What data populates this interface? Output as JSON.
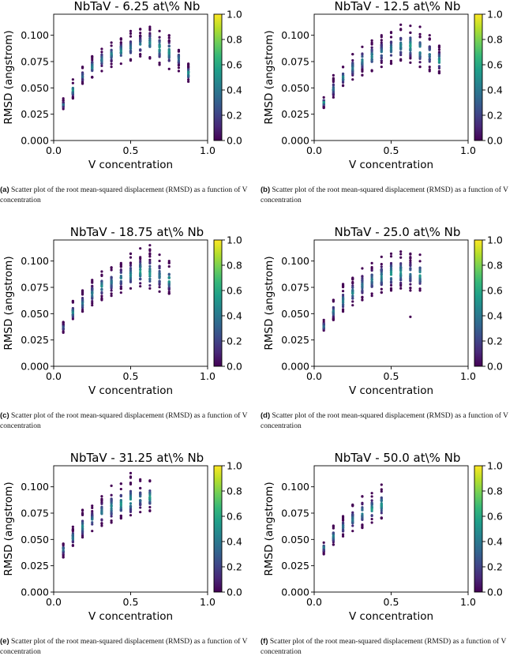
{
  "colorbar": {
    "ticks": [
      "0.0",
      "0.2",
      "0.4",
      "0.6",
      "0.8",
      "1.0"
    ]
  },
  "chart_data": [
    {
      "type": "scatter",
      "title": "NbTaV - 6.25 at\\% Nb",
      "xlabel": "V concentration",
      "ylabel": "RMSD (angstrom)",
      "xlim": [
        0,
        1
      ],
      "ylim": [
        0,
        0.12
      ],
      "x_ticks": [
        "0.0",
        "0.5",
        "1.0"
      ],
      "y_ticks": [
        "0.000",
        "0.025",
        "0.050",
        "0.075",
        "0.100"
      ],
      "colorbar_range": [
        0,
        1
      ],
      "series": [
        {
          "x": 0.0625,
          "y_min": 0.03,
          "y_max": 0.04,
          "center": 0.034
        },
        {
          "x": 0.125,
          "y_min": 0.04,
          "y_max": 0.058,
          "center": 0.048
        },
        {
          "x": 0.1875,
          "y_min": 0.054,
          "y_max": 0.07,
          "center": 0.061
        },
        {
          "x": 0.25,
          "y_min": 0.06,
          "y_max": 0.08,
          "center": 0.07
        },
        {
          "x": 0.3125,
          "y_min": 0.066,
          "y_max": 0.087,
          "center": 0.077
        },
        {
          "x": 0.375,
          "y_min": 0.07,
          "y_max": 0.093,
          "center": 0.082
        },
        {
          "x": 0.4375,
          "y_min": 0.073,
          "y_max": 0.097,
          "center": 0.085
        },
        {
          "x": 0.5,
          "y_min": 0.076,
          "y_max": 0.104,
          "center": 0.088
        },
        {
          "x": 0.5625,
          "y_min": 0.08,
          "y_max": 0.106,
          "center": 0.091
        },
        {
          "x": 0.625,
          "y_min": 0.078,
          "y_max": 0.108,
          "center": 0.093
        },
        {
          "x": 0.6875,
          "y_min": 0.072,
          "y_max": 0.104,
          "center": 0.088
        },
        {
          "x": 0.75,
          "y_min": 0.068,
          "y_max": 0.1,
          "center": 0.084
        },
        {
          "x": 0.8125,
          "y_min": 0.066,
          "y_max": 0.086,
          "center": 0.078
        },
        {
          "x": 0.875,
          "y_min": 0.056,
          "y_max": 0.073,
          "center": 0.064
        }
      ]
    },
    {
      "type": "scatter",
      "title": "NbTaV - 12.5 at\\% Nb",
      "xlabel": "V concentration",
      "ylabel": "RMSD (angstrom)",
      "xlim": [
        0,
        1
      ],
      "ylim": [
        0,
        0.12
      ],
      "x_ticks": [
        "0.0",
        "0.5",
        "1.0"
      ],
      "y_ticks": [
        "0.000",
        "0.025",
        "0.050",
        "0.075",
        "0.100"
      ],
      "colorbar_range": [
        0,
        1
      ],
      "series": [
        {
          "x": 0.0625,
          "y_min": 0.031,
          "y_max": 0.041,
          "center": 0.036
        },
        {
          "x": 0.125,
          "y_min": 0.041,
          "y_max": 0.062,
          "center": 0.049
        },
        {
          "x": 0.1875,
          "y_min": 0.052,
          "y_max": 0.07,
          "center": 0.06
        },
        {
          "x": 0.25,
          "y_min": 0.058,
          "y_max": 0.082,
          "center": 0.069
        },
        {
          "x": 0.3125,
          "y_min": 0.062,
          "y_max": 0.089,
          "center": 0.076
        },
        {
          "x": 0.375,
          "y_min": 0.066,
          "y_max": 0.095,
          "center": 0.08
        },
        {
          "x": 0.4375,
          "y_min": 0.07,
          "y_max": 0.1,
          "center": 0.084
        },
        {
          "x": 0.5,
          "y_min": 0.073,
          "y_max": 0.103,
          "center": 0.087
        },
        {
          "x": 0.5625,
          "y_min": 0.076,
          "y_max": 0.11,
          "center": 0.09
        },
        {
          "x": 0.625,
          "y_min": 0.074,
          "y_max": 0.109,
          "center": 0.09
        },
        {
          "x": 0.6875,
          "y_min": 0.07,
          "y_max": 0.108,
          "center": 0.086
        },
        {
          "x": 0.75,
          "y_min": 0.066,
          "y_max": 0.1,
          "center": 0.082
        },
        {
          "x": 0.8125,
          "y_min": 0.064,
          "y_max": 0.09,
          "center": 0.076
        }
      ]
    },
    {
      "type": "scatter",
      "title": "NbTaV - 18.75 at\\% Nb",
      "xlabel": "V concentration",
      "ylabel": "RMSD (angstrom)",
      "xlim": [
        0,
        1
      ],
      "ylim": [
        0,
        0.12
      ],
      "x_ticks": [
        "0.0",
        "0.5",
        "1.0"
      ],
      "y_ticks": [
        "0.000",
        "0.025",
        "0.050",
        "0.075",
        "0.100"
      ],
      "colorbar_range": [
        0,
        1
      ],
      "series": [
        {
          "x": 0.0625,
          "y_min": 0.032,
          "y_max": 0.042,
          "center": 0.037
        },
        {
          "x": 0.125,
          "y_min": 0.045,
          "y_max": 0.062,
          "center": 0.051
        },
        {
          "x": 0.1875,
          "y_min": 0.052,
          "y_max": 0.072,
          "center": 0.06
        },
        {
          "x": 0.25,
          "y_min": 0.058,
          "y_max": 0.082,
          "center": 0.069
        },
        {
          "x": 0.3125,
          "y_min": 0.063,
          "y_max": 0.09,
          "center": 0.076
        },
        {
          "x": 0.375,
          "y_min": 0.067,
          "y_max": 0.094,
          "center": 0.08
        },
        {
          "x": 0.4375,
          "y_min": 0.07,
          "y_max": 0.098,
          "center": 0.084
        },
        {
          "x": 0.5,
          "y_min": 0.074,
          "y_max": 0.107,
          "center": 0.087
        },
        {
          "x": 0.5625,
          "y_min": 0.076,
          "y_max": 0.112,
          "center": 0.09
        },
        {
          "x": 0.625,
          "y_min": 0.074,
          "y_max": 0.115,
          "center": 0.088
        },
        {
          "x": 0.6875,
          "y_min": 0.071,
          "y_max": 0.106,
          "center": 0.086
        },
        {
          "x": 0.75,
          "y_min": 0.069,
          "y_max": 0.1,
          "center": 0.082
        }
      ]
    },
    {
      "type": "scatter",
      "title": "NbTaV - 25.0 at\\% Nb",
      "xlabel": "V concentration",
      "ylabel": "RMSD (angstrom)",
      "xlim": [
        0,
        1
      ],
      "ylim": [
        0,
        0.12
      ],
      "x_ticks": [
        "0.0",
        "0.5",
        "1.0"
      ],
      "y_ticks": [
        "0.000",
        "0.025",
        "0.050",
        "0.075",
        "0.100"
      ],
      "colorbar_range": [
        0,
        1
      ],
      "series": [
        {
          "x": 0.0625,
          "y_min": 0.034,
          "y_max": 0.044,
          "center": 0.038
        },
        {
          "x": 0.125,
          "y_min": 0.044,
          "y_max": 0.063,
          "center": 0.052
        },
        {
          "x": 0.1875,
          "y_min": 0.052,
          "y_max": 0.078,
          "center": 0.062
        },
        {
          "x": 0.25,
          "y_min": 0.058,
          "y_max": 0.084,
          "center": 0.07
        },
        {
          "x": 0.3125,
          "y_min": 0.063,
          "y_max": 0.093,
          "center": 0.077
        },
        {
          "x": 0.375,
          "y_min": 0.067,
          "y_max": 0.098,
          "center": 0.082
        },
        {
          "x": 0.4375,
          "y_min": 0.07,
          "y_max": 0.104,
          "center": 0.085
        },
        {
          "x": 0.5,
          "y_min": 0.072,
          "y_max": 0.107,
          "center": 0.088
        },
        {
          "x": 0.5625,
          "y_min": 0.074,
          "y_max": 0.109,
          "center": 0.089
        },
        {
          "x": 0.625,
          "y_min": 0.072,
          "y_max": 0.107,
          "center": 0.088,
          "outlier": 0.047
        },
        {
          "x": 0.6875,
          "y_min": 0.072,
          "y_max": 0.106,
          "center": 0.087
        }
      ]
    },
    {
      "type": "scatter",
      "title": "NbTaV - 31.25 at\\% Nb",
      "xlabel": "V concentration",
      "ylabel": "RMSD (angstrom)",
      "xlim": [
        0,
        1
      ],
      "ylim": [
        0,
        0.12
      ],
      "x_ticks": [
        "0.0",
        "0.5",
        "1.0"
      ],
      "y_ticks": [
        "0.000",
        "0.025",
        "0.050",
        "0.075",
        "0.100"
      ],
      "colorbar_range": [
        0,
        1
      ],
      "series": [
        {
          "x": 0.0625,
          "y_min": 0.033,
          "y_max": 0.046,
          "center": 0.04
        },
        {
          "x": 0.125,
          "y_min": 0.044,
          "y_max": 0.062,
          "center": 0.052
        },
        {
          "x": 0.1875,
          "y_min": 0.052,
          "y_max": 0.078,
          "center": 0.062
        },
        {
          "x": 0.25,
          "y_min": 0.058,
          "y_max": 0.082,
          "center": 0.069
        },
        {
          "x": 0.3125,
          "y_min": 0.063,
          "y_max": 0.091,
          "center": 0.076
        },
        {
          "x": 0.375,
          "y_min": 0.066,
          "y_max": 0.101,
          "center": 0.081
        },
        {
          "x": 0.4375,
          "y_min": 0.07,
          "y_max": 0.103,
          "center": 0.084
        },
        {
          "x": 0.5,
          "y_min": 0.073,
          "y_max": 0.113,
          "center": 0.087
        },
        {
          "x": 0.5625,
          "y_min": 0.076,
          "y_max": 0.107,
          "center": 0.089
        },
        {
          "x": 0.625,
          "y_min": 0.077,
          "y_max": 0.106,
          "center": 0.09
        }
      ]
    },
    {
      "type": "scatter",
      "title": "NbTaV - 50.0 at\\% Nb",
      "xlabel": "V concentration",
      "ylabel": "RMSD (angstrom)",
      "xlim": [
        0,
        1
      ],
      "ylim": [
        0,
        0.12
      ],
      "x_ticks": [
        "0.0",
        "0.5",
        "1.0"
      ],
      "y_ticks": [
        "0.000",
        "0.025",
        "0.050",
        "0.075",
        "0.100"
      ],
      "colorbar_range": [
        0,
        1
      ],
      "series": [
        {
          "x": 0.0625,
          "y_min": 0.036,
          "y_max": 0.047,
          "center": 0.042
        },
        {
          "x": 0.125,
          "y_min": 0.045,
          "y_max": 0.063,
          "center": 0.053
        },
        {
          "x": 0.1875,
          "y_min": 0.053,
          "y_max": 0.072,
          "center": 0.062
        },
        {
          "x": 0.25,
          "y_min": 0.058,
          "y_max": 0.083,
          "center": 0.069
        },
        {
          "x": 0.3125,
          "y_min": 0.061,
          "y_max": 0.091,
          "center": 0.075
        },
        {
          "x": 0.375,
          "y_min": 0.066,
          "y_max": 0.094,
          "center": 0.079
        },
        {
          "x": 0.4375,
          "y_min": 0.07,
          "y_max": 0.102,
          "center": 0.083
        }
      ]
    }
  ],
  "captions": [
    {
      "label": "(a)",
      "text": "Scatter plot of the root mean-squared displacement (RMSD) as a function of V concentration"
    },
    {
      "label": "(b)",
      "text": "Scatter plot of the root mean-squared displacement (RMSD) as a function of V concentration"
    },
    {
      "label": "(c)",
      "text": "Scatter plot of the root mean-squared displacement (RMSD) as a function of V concentration"
    },
    {
      "label": "(d)",
      "text": "Scatter plot of the root mean-squared displacement (RMSD) as a function of V concentration"
    },
    {
      "label": "(e)",
      "text": "Scatter plot of the root mean-squared displacement (RMSD) as a function of V concentration"
    },
    {
      "label": "(f)",
      "text": "Scatter plot of the root mean-squared displacement (RMSD) as a function of V concentration"
    }
  ]
}
